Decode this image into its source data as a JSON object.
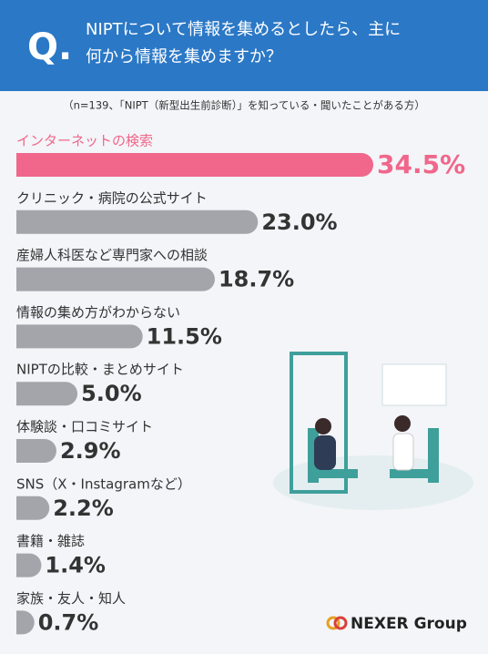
{
  "header": {
    "q": "Q.",
    "title_lines": [
      "NIPTについて情報を集めるとしたら、主に",
      "何から情報を集めますか？"
    ]
  },
  "chart_data": {
    "type": "bar",
    "orientation": "horizontal",
    "subtitle": "（n=139、「NIPT（新型出生前診断）」を知っている・聞いたことがある方）",
    "categories": [
      "インターネットの検索",
      "クリニック・病院の公式サイト",
      "産婦人科医など専門家への相談",
      "情報の集め方がわからない",
      "NIPTの比較・まとめサイト",
      "体験談・口コミサイト",
      "SNS（X・Instagramなど）",
      "書籍・雑誌",
      "家族・友人・知人"
    ],
    "values": [
      34.5,
      23.0,
      18.7,
      11.5,
      5.0,
      2.9,
      2.2,
      1.4,
      0.7
    ],
    "value_labels": [
      "34.5%",
      "23.0%",
      "18.7%",
      "11.5%",
      "5.0%",
      "2.9%",
      "2.2%",
      "1.4%",
      "0.7%"
    ],
    "highlight_color": "#f0678b",
    "color": "#a4a4ab"
  },
  "logo": "NEXER Group"
}
